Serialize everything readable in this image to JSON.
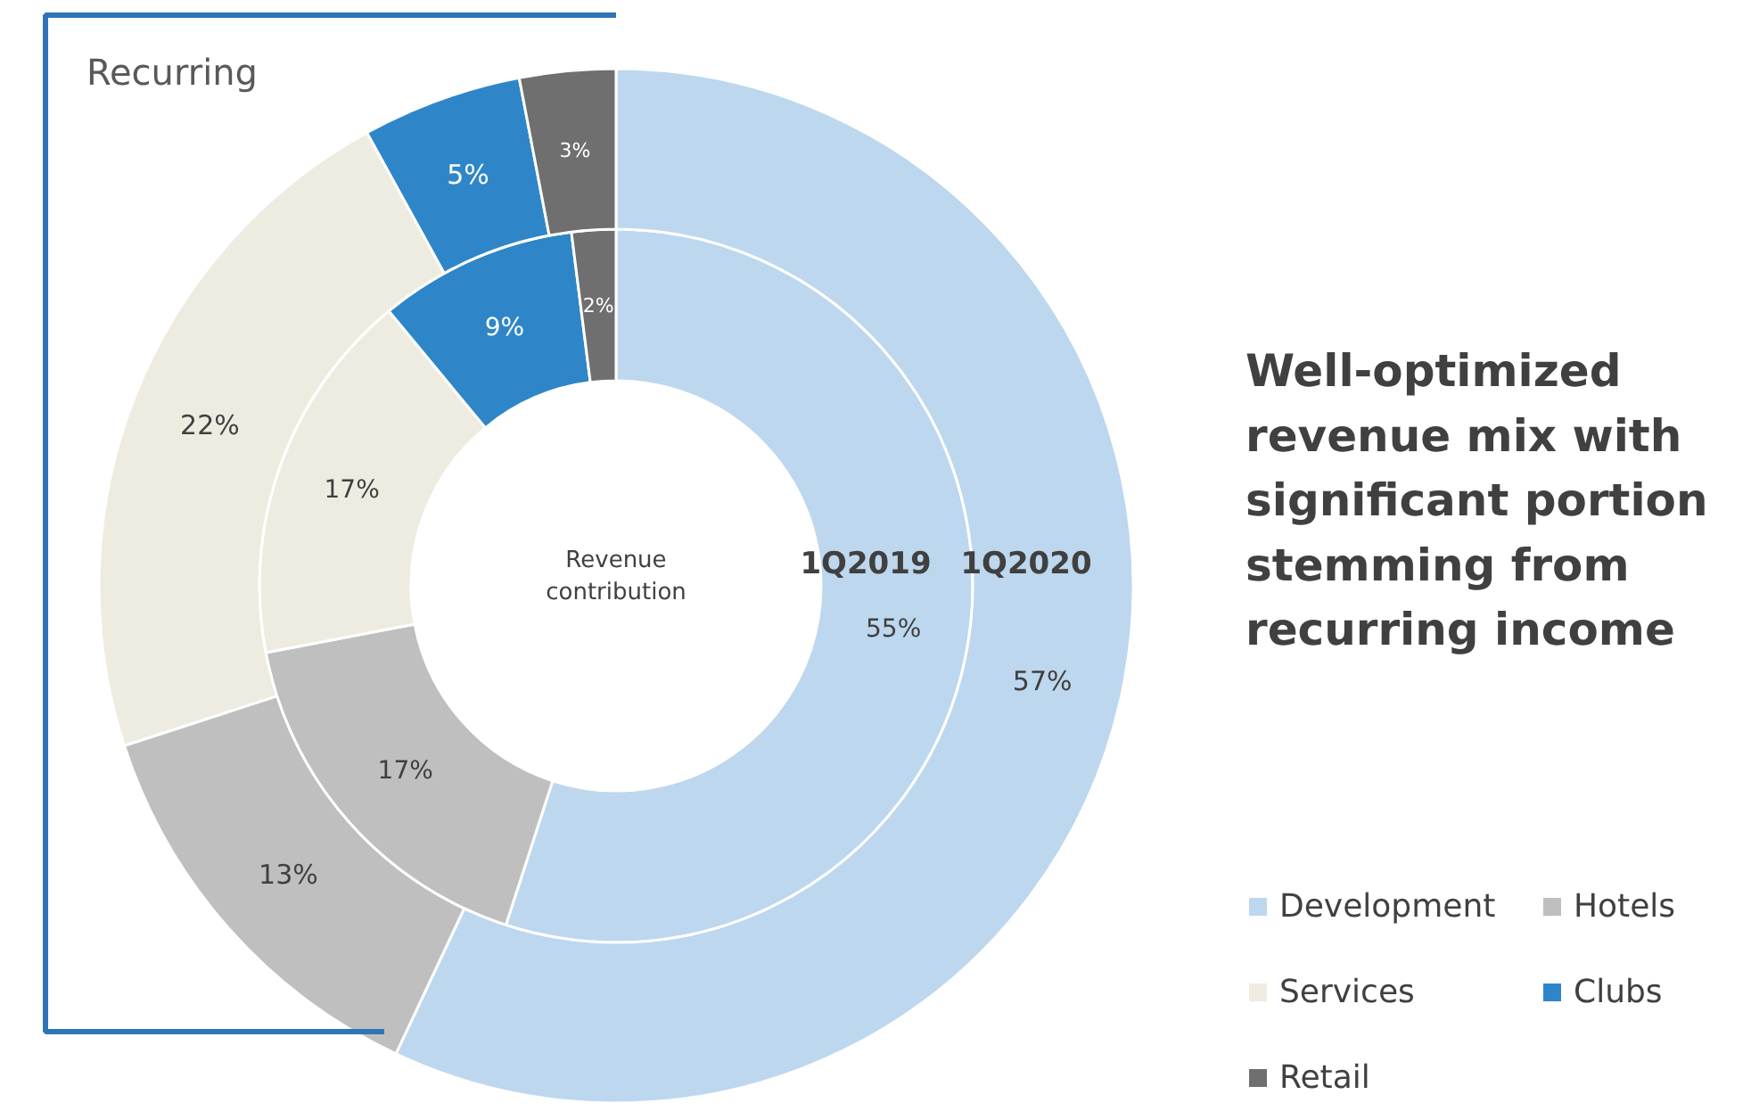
{
  "chart_data": {
    "type": "donut",
    "title": "Well-optimized revenue mix with significant portion stemming from recurring income",
    "categories": [
      "Development",
      "Hotels",
      "Services",
      "Clubs",
      "Retail"
    ],
    "colors": [
      "#bdd7ee",
      "#bfbfbf",
      "#eeece1",
      "#2e86c8",
      "#6f6f6f"
    ],
    "series": [
      {
        "name": "1Q2019",
        "values": [
          55,
          17,
          17,
          9,
          2
        ],
        "value_labels": [
          "55%",
          "17%",
          "17%",
          "9%",
          "2%"
        ]
      },
      {
        "name": "1Q2020",
        "values": [
          57,
          13,
          22,
          5,
          3
        ],
        "value_labels": [
          "57%",
          "13%",
          "22%",
          "5%",
          "3%"
        ]
      }
    ],
    "annotations": [
      "Recurring",
      "Revenue contribution"
    ],
    "legend": "bottom right"
  }
}
